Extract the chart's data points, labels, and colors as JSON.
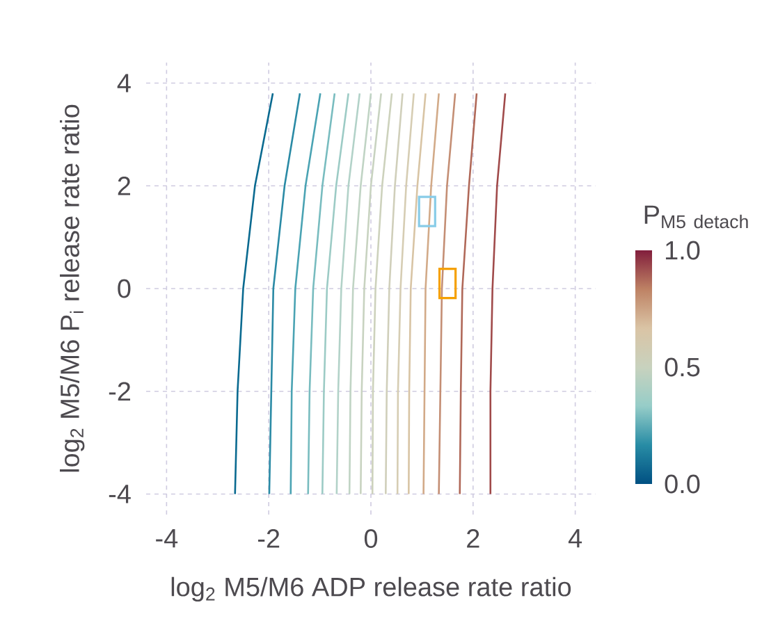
{
  "chart_data": {
    "type": "line",
    "xlabel": "log$_{2}$ M5/M6 ADP release rate ratio",
    "ylabel": "log$_{2}$ M5/M6 P$_{i}$ release rate ratio",
    "clabel": "\\mathrm{P}_{\\mathrm{M5\\ detach}}",
    "xlim": [
      -4.4,
      4.4
    ],
    "ylim": [
      -4.4,
      4.4
    ],
    "xticks": [
      -4,
      -2,
      0,
      2,
      4
    ],
    "yticks": [
      -4,
      -2,
      0,
      2,
      4
    ],
    "clim": [
      0,
      1
    ],
    "cticks": [
      {
        "value": 0,
        "label": "0.0"
      },
      {
        "value": 0.5,
        "label": "0.5"
      },
      {
        "value": 1,
        "label": "1.0"
      }
    ],
    "grid": true,
    "marker": "none",
    "line_style": "solid",
    "series": [
      {
        "color": "#0a6a90",
        "x": [
          -2.66,
          -2.61,
          -2.5,
          -2.27,
          -1.92
        ],
        "values": [
          -4,
          -2,
          0,
          2,
          3.8
        ]
      },
      {
        "color": "#2a8aa5",
        "x": [
          -1.99,
          -1.95,
          -1.91,
          -1.69,
          -1.39
        ],
        "values": [
          -4,
          -2,
          0,
          2,
          3.8
        ]
      },
      {
        "color": "#4aa3b3",
        "x": [
          -1.57,
          -1.55,
          -1.48,
          -1.28,
          -0.99
        ],
        "values": [
          -4,
          -2,
          0,
          2,
          3.8
        ]
      },
      {
        "color": "#78bcbf",
        "x": [
          -1.23,
          -1.2,
          -1.13,
          -0.95,
          -0.71
        ],
        "values": [
          -4,
          -2,
          0,
          2,
          3.8
        ]
      },
      {
        "color": "#9ccbc5",
        "x": [
          -0.95,
          -0.92,
          -0.86,
          -0.68,
          -0.44
        ],
        "values": [
          -4,
          -2,
          0,
          2,
          3.8
        ]
      },
      {
        "color": "#b2d2c8",
        "x": [
          -0.67,
          -0.64,
          -0.58,
          -0.44,
          -0.22
        ],
        "values": [
          -4,
          -2,
          0,
          2,
          3.8
        ]
      },
      {
        "color": "#c0d4c4",
        "x": [
          -0.42,
          -0.4,
          -0.35,
          -0.2,
          0.0
        ],
        "values": [
          -4,
          -2,
          0,
          2,
          3.8
        ]
      },
      {
        "color": "#c8d3c0",
        "x": [
          -0.2,
          -0.18,
          -0.13,
          0.0,
          0.2
        ],
        "values": [
          -4,
          -2,
          0,
          2,
          3.8
        ]
      },
      {
        "color": "#cdd2bc",
        "x": [
          0.03,
          0.04,
          0.09,
          0.22,
          0.41
        ],
        "values": [
          -4,
          -2,
          0,
          2,
          3.8
        ]
      },
      {
        "color": "#d0cfba",
        "x": [
          0.29,
          0.31,
          0.36,
          0.47,
          0.62
        ],
        "values": [
          -4,
          -2,
          0,
          2,
          3.8
        ]
      },
      {
        "color": "#d6cdb3",
        "x": [
          0.52,
          0.53,
          0.58,
          0.69,
          0.84
        ],
        "values": [
          -4,
          -2,
          0,
          2,
          3.8
        ]
      },
      {
        "color": "#d8c4a4",
        "x": [
          0.74,
          0.75,
          0.78,
          0.91,
          1.07
        ],
        "values": [
          -4,
          -2,
          0,
          2,
          3.8
        ]
      },
      {
        "color": "#d2aa88",
        "x": [
          1.03,
          1.05,
          1.07,
          1.18,
          1.33
        ],
        "values": [
          -4,
          -2,
          0,
          2,
          3.8
        ]
      },
      {
        "color": "#c48e74",
        "x": [
          1.33,
          1.36,
          1.39,
          1.49,
          1.65
        ],
        "values": [
          -4,
          -2,
          0,
          2,
          3.8
        ]
      },
      {
        "color": "#b06858",
        "x": [
          1.74,
          1.76,
          1.79,
          1.92,
          2.07
        ],
        "values": [
          -4,
          -2,
          0,
          2,
          3.8
        ]
      },
      {
        "color": "#a04a4a",
        "x": [
          2.34,
          2.34,
          2.38,
          2.47,
          2.63
        ],
        "values": [
          -4,
          -2,
          0,
          2,
          3.8
        ]
      },
      {
        "type": "scatter",
        "marker": "square",
        "color": "#88cce8",
        "x": [
          1.1
        ],
        "values": [
          1.5
        ]
      },
      {
        "type": "scatter",
        "marker": "square",
        "color": "#f5a000",
        "x": [
          1.5
        ],
        "values": [
          0.1
        ]
      }
    ]
  }
}
